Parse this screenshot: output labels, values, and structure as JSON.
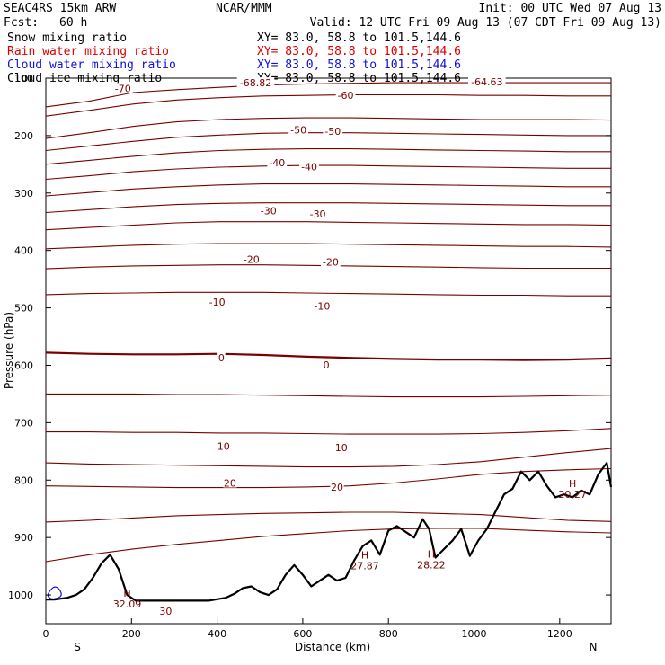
{
  "header": {
    "model": "SEAC4RS 15km ARW",
    "org": "NCAR/MMM",
    "init": "Init: 00 UTC Wed 07 Aug 13",
    "fcst_label": "Fcst:",
    "fcst_value": "60 h",
    "valid": "Valid: 12 UTC Fri 09 Aug 13 (07 CDT Fri 09 Aug 13)"
  },
  "fields": [
    {
      "label": "Snow mixing ratio",
      "xy": "XY=  83.0, 58.8 to 101.5,144.6",
      "color": "#000000"
    },
    {
      "label": "Rain water mixing ratio",
      "xy": "XY=  83.0, 58.8 to 101.5,144.6",
      "color": "#e00000"
    },
    {
      "label": "Cloud water mixing ratio",
      "xy": "XY=  83.0, 58.8 to 101.5,144.6",
      "color": "#1010d8"
    },
    {
      "label": "Cloud ice mixing ratio",
      "xy": "XY=  83.0, 58.8 to 101.5,144.6",
      "color": "#000000"
    }
  ],
  "chart_data": {
    "type": "line",
    "title": "",
    "xlabel": "Distance (km)",
    "ylabel": "Pressure (hPa)",
    "xlim": [
      0,
      1320
    ],
    "ylim": [
      1050,
      100
    ],
    "x_ticks": [
      0,
      200,
      400,
      600,
      800,
      1000,
      1200
    ],
    "y_ticks": [
      100,
      200,
      300,
      400,
      500,
      600,
      700,
      800,
      900,
      1000
    ],
    "x_tick_labels": [
      "0",
      "200",
      "400",
      "600",
      "800",
      "1000",
      "1200"
    ],
    "y_tick_labels": [
      "100",
      "200",
      "300",
      "400",
      "500",
      "600",
      "700",
      "800",
      "900",
      "1000"
    ],
    "end_labels": {
      "left": "S",
      "right": "N"
    },
    "contour_color": "#7a0000",
    "terrain_color": "#000000",
    "temperature_labels": [
      {
        "text": "-70",
        "x": 180,
        "p": 118
      },
      {
        "text": "-68.82",
        "x": 490,
        "p": 108
      },
      {
        "text": "-64.63",
        "x": 1030,
        "p": 106
      },
      {
        "text": "-60",
        "x": 700,
        "p": 130
      },
      {
        "text": "-50",
        "x": 590,
        "p": 190
      },
      {
        "text": "-50",
        "x": 670,
        "p": 192
      },
      {
        "text": "-40",
        "x": 540,
        "p": 247
      },
      {
        "text": "-40",
        "x": 615,
        "p": 254
      },
      {
        "text": "-30",
        "x": 520,
        "p": 331
      },
      {
        "text": "-30",
        "x": 635,
        "p": 336
      },
      {
        "text": "-20",
        "x": 480,
        "p": 415
      },
      {
        "text": "-20",
        "x": 665,
        "p": 420
      },
      {
        "text": "-10",
        "x": 400,
        "p": 490
      },
      {
        "text": "-10",
        "x": 645,
        "p": 497
      },
      {
        "text": "0",
        "x": 410,
        "p": 587
      },
      {
        "text": "0",
        "x": 655,
        "p": 599
      },
      {
        "text": "10",
        "x": 415,
        "p": 741
      },
      {
        "text": "10",
        "x": 690,
        "p": 743
      },
      {
        "text": "20",
        "x": 430,
        "p": 805
      },
      {
        "text": "20",
        "x": 680,
        "p": 812
      },
      {
        "text": "30",
        "x": 280,
        "p": 1028
      }
    ],
    "highs": [
      {
        "text": "32.09",
        "x": 190,
        "p": 1008
      },
      {
        "text": "27.87",
        "x": 745,
        "p": 941
      },
      {
        "text": "28.22",
        "x": 900,
        "p": 940
      },
      {
        "text": "20.27",
        "x": 1230,
        "p": 817
      }
    ],
    "isotherms": [
      {
        "temp": -70,
        "p": [
          150,
          140,
          125,
          120,
          116,
          112,
          110,
          109,
          108,
          108,
          108,
          108,
          108,
          108
        ]
      },
      {
        "temp": -60,
        "p": [
          166,
          156,
          145,
          138,
          134,
          131,
          130,
          129,
          129,
          129,
          130,
          130,
          131,
          131
        ]
      },
      {
        "temp": -50,
        "p": [
          205,
          195,
          184,
          176,
          172,
          170,
          169,
          169,
          170,
          171,
          172,
          172,
          172,
          173
        ]
      },
      {
        "temp": -45,
        "p": [
          226,
          218,
          210,
          203,
          199,
          196,
          195,
          195,
          196,
          197,
          198,
          199,
          200,
          200
        ]
      },
      {
        "temp": -40,
        "p": [
          250,
          243,
          236,
          230,
          226,
          224,
          223,
          223,
          224,
          225,
          226,
          227,
          228,
          228
        ]
      },
      {
        "temp": -35,
        "p": [
          276,
          270,
          263,
          258,
          255,
          253,
          252,
          252,
          253,
          254,
          255,
          256,
          257,
          257
        ]
      },
      {
        "temp": -30,
        "p": [
          305,
          299,
          293,
          289,
          286,
          284,
          284,
          284,
          285,
          286,
          287,
          288,
          289,
          289
        ]
      },
      {
        "temp": -25,
        "p": [
          334,
          329,
          324,
          320,
          318,
          317,
          317,
          317,
          318,
          319,
          320,
          321,
          322,
          322
        ]
      },
      {
        "temp": -20,
        "p": [
          364,
          360,
          356,
          352,
          350,
          350,
          350,
          351,
          352,
          353,
          354,
          355,
          355,
          356
        ]
      },
      {
        "temp": -15,
        "p": [
          397,
          394,
          391,
          389,
          388,
          388,
          388,
          389,
          390,
          391,
          392,
          393,
          393,
          394
        ]
      },
      {
        "temp": -10,
        "p": [
          432,
          429,
          427,
          426,
          425,
          425,
          426,
          427,
          428,
          429,
          430,
          431,
          431,
          431
        ]
      },
      {
        "temp": -5,
        "p": [
          477,
          475,
          474,
          473,
          473,
          473,
          474,
          475,
          476,
          477,
          478,
          478,
          479,
          479
        ]
      },
      {
        "temp": 0,
        "p": [
          578,
          580,
          581,
          581,
          580,
          582,
          585,
          587,
          589,
          590,
          590,
          591,
          590,
          588
        ]
      },
      {
        "temp": 5,
        "p": [
          650,
          650,
          650,
          651,
          651,
          652,
          653,
          654,
          655,
          655,
          655,
          654,
          653,
          652
        ]
      },
      {
        "temp": 10,
        "p": [
          716,
          716,
          717,
          717,
          718,
          718,
          719,
          720,
          720,
          720,
          719,
          717,
          714,
          710
        ]
      },
      {
        "temp": 15,
        "p": [
          770,
          772,
          773,
          774,
          775,
          776,
          777,
          777,
          776,
          773,
          768,
          760,
          752,
          745
        ]
      },
      {
        "temp": 20,
        "p": [
          810,
          811,
          812,
          813,
          813,
          813,
          812,
          810,
          805,
          798,
          790,
          785,
          782,
          780
        ]
      },
      {
        "temp": 25,
        "p": [
          873,
          870,
          866,
          862,
          860,
          858,
          857,
          856,
          856,
          858,
          860,
          865,
          870,
          872
        ]
      },
      {
        "temp": 28,
        "p": [
          942,
          930,
          920,
          912,
          905,
          898,
          893,
          888,
          885,
          884,
          884,
          887,
          890,
          892
        ]
      }
    ],
    "terrain": {
      "x": [
        0,
        20,
        50,
        70,
        90,
        110,
        130,
        150,
        170,
        190,
        210,
        240,
        300,
        380,
        420,
        440,
        460,
        480,
        500,
        520,
        540,
        560,
        580,
        600,
        620,
        640,
        660,
        680,
        700,
        720,
        740,
        760,
        780,
        800,
        820,
        840,
        860,
        880,
        895,
        910,
        930,
        950,
        970,
        990,
        1010,
        1030,
        1050,
        1070,
        1090,
        1110,
        1130,
        1150,
        1170,
        1190,
        1210,
        1230,
        1250,
        1270,
        1290,
        1310,
        1320
      ],
      "p": [
        1008,
        1008,
        1005,
        1000,
        990,
        970,
        945,
        930,
        955,
        1000,
        1010,
        1010,
        1010,
        1010,
        1005,
        998,
        988,
        985,
        995,
        1000,
        990,
        965,
        948,
        965,
        985,
        975,
        965,
        975,
        970,
        940,
        915,
        905,
        930,
        888,
        880,
        890,
        900,
        868,
        885,
        935,
        920,
        905,
        885,
        932,
        905,
        885,
        855,
        825,
        815,
        785,
        800,
        785,
        810,
        830,
        825,
        830,
        818,
        825,
        790,
        770,
        812
      ]
    }
  }
}
